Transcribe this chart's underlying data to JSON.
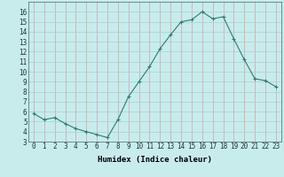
{
  "x": [
    0,
    1,
    2,
    3,
    4,
    5,
    6,
    7,
    8,
    9,
    10,
    11,
    12,
    13,
    14,
    15,
    16,
    17,
    18,
    19,
    20,
    21,
    22,
    23
  ],
  "y": [
    5.8,
    5.2,
    5.4,
    4.8,
    4.3,
    4.0,
    3.7,
    3.4,
    5.2,
    7.5,
    9.0,
    10.5,
    12.3,
    13.7,
    15.0,
    15.2,
    16.0,
    15.3,
    15.5,
    13.3,
    11.2,
    9.3,
    9.1,
    8.5
  ],
  "xlabel": "Humidex (Indice chaleur)",
  "ylim": [
    3,
    17
  ],
  "yticks": [
    3,
    4,
    5,
    6,
    7,
    8,
    9,
    10,
    11,
    12,
    13,
    14,
    15,
    16
  ],
  "xticks": [
    0,
    1,
    2,
    3,
    4,
    5,
    6,
    7,
    8,
    9,
    10,
    11,
    12,
    13,
    14,
    15,
    16,
    17,
    18,
    19,
    20,
    21,
    22,
    23
  ],
  "line_color": "#2e7d6e",
  "marker_color": "#2e7d6e",
  "bg_color": "#c8ecec",
  "grid_color_v": "#d4a0a0",
  "grid_color_h": "#a8d0d0",
  "tick_label_fontsize": 5.5,
  "xlabel_fontsize": 6.5,
  "xlim": [
    -0.5,
    23.5
  ]
}
